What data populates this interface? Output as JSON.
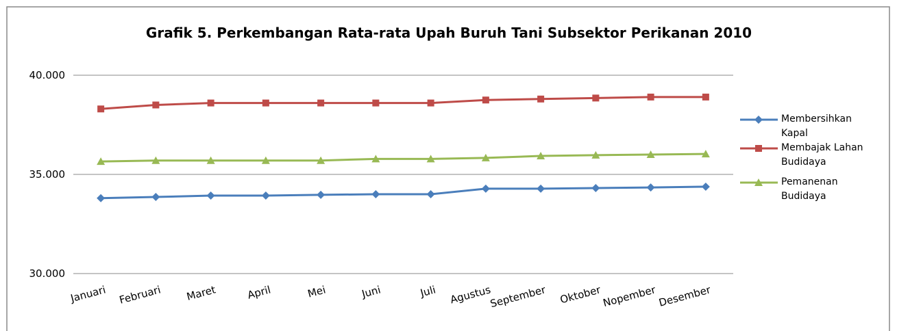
{
  "chart_data": {
    "type": "line",
    "title": "Grafik 5. Perkembangan Rata-rata Upah Buruh Tani Subsektor Perikanan 2010",
    "categories": [
      "Januari",
      "Februari",
      "Maret",
      "April",
      "Mei",
      "Juni",
      "Juli",
      "Agustus",
      "September",
      "Oktober",
      "Nopember",
      "Desember"
    ],
    "series": [
      {
        "name": "Membersihkan Kapal",
        "color": "#4a7ebb",
        "marker": "diamond",
        "values": [
          33800,
          33860,
          33930,
          33930,
          33970,
          34000,
          34000,
          34280,
          34280,
          34310,
          34340,
          34380
        ]
      },
      {
        "name": "Membajak Lahan Budidaya",
        "color": "#be4b48",
        "marker": "square",
        "values": [
          38300,
          38500,
          38600,
          38600,
          38600,
          38600,
          38600,
          38750,
          38800,
          38850,
          38900,
          38900
        ]
      },
      {
        "name": "Pemanenan Budidaya",
        "color": "#98b954",
        "marker": "triangle",
        "values": [
          35650,
          35700,
          35700,
          35700,
          35700,
          35780,
          35780,
          35830,
          35930,
          35970,
          36000,
          36030
        ]
      }
    ],
    "ylim": [
      30000,
      40000
    ],
    "yticks": [
      {
        "value": 30000,
        "label": "30.000"
      },
      {
        "value": 35000,
        "label": "35.000"
      },
      {
        "value": 40000,
        "label": "40.000"
      }
    ],
    "grid": true,
    "legend": "right"
  }
}
